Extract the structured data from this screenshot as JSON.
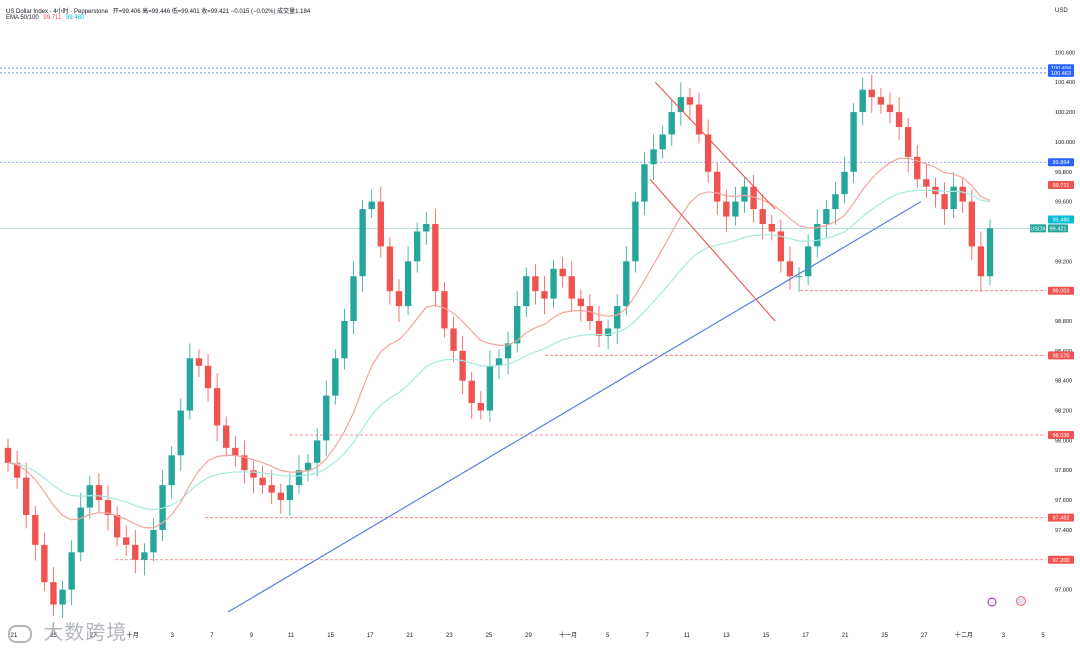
{
  "header": {
    "title": "US Dollar Index · 4小时 · Pepperstone",
    "ohlc": "开=99.406  高=99.446  低=99.401  收=99.421  −0.015 (−0.02%)  成交量1.184",
    "ema_label": "EMA 50/100",
    "ema50_value": "99.711",
    "ema100_value": "99.480"
  },
  "axis_unit": "USD",
  "watermark": "大数跨境",
  "colors": {
    "up": "#26a69a",
    "down": "#ef5350",
    "ema50": "#f4a49a",
    "ema100": "#a6eadf",
    "trendline": "#5b7fe0",
    "channel": "#ef5350",
    "level": "#ef5350",
    "resistance": "#5b7fe0",
    "current": "#26a69a"
  },
  "chart_data": {
    "type": "candlestick",
    "title": "US Dollar Index",
    "ylabel": "USD",
    "ylim": [
      96.85,
      100.75
    ],
    "x_tick_labels": [
      "21",
      "25",
      "27",
      "十月",
      "3",
      "7",
      "9",
      "11",
      "15",
      "17",
      "21",
      "23",
      "25",
      "29",
      "十一月",
      "5",
      "7",
      "11",
      "13",
      "15",
      "17",
      "21",
      "25",
      "27",
      "十二月",
      "3",
      "5"
    ],
    "y_tick_labels": [
      "100.600",
      "100.400",
      "100.200",
      "100.000",
      "99.800",
      "99.600",
      "99.200",
      "98.800",
      "98.600",
      "98.400",
      "98.200",
      "98.000",
      "97.800",
      "97.600",
      "97.400",
      "97.000"
    ],
    "key_levels": [
      {
        "value": 100.494,
        "label": "100.494",
        "color": "#2962ff",
        "style": "dotted"
      },
      {
        "value": 100.463,
        "label": "100.463",
        "color": "#2962ff",
        "style": "dotted"
      },
      {
        "value": 99.864,
        "label": "99.864",
        "color": "#2962ff",
        "style": "dotted"
      },
      {
        "value": 99.711,
        "label": "99.711",
        "color": "#ef5350",
        "style": "tag"
      },
      {
        "value": 99.48,
        "label": "99.480",
        "color": "#00bcd4",
        "style": "tag"
      },
      {
        "value": 99.421,
        "label": "99.421",
        "color": "#26a69a",
        "style": "solid",
        "prefix": "USDX"
      },
      {
        "value": 99.003,
        "label": "99.003",
        "color": "#ef5350",
        "style": "dashed"
      },
      {
        "value": 98.57,
        "label": "98.570",
        "color": "#ef5350",
        "style": "dashed"
      },
      {
        "value": 98.036,
        "label": "98.036",
        "color": "#ef5350",
        "style": "dashed"
      },
      {
        "value": 97.482,
        "label": "97.482",
        "color": "#ef5350",
        "style": "dashed"
      },
      {
        "value": 97.2,
        "label": "97.200",
        "color": "#ef5350",
        "style": "dashed"
      }
    ],
    "trendline": {
      "from": [
        0.215,
        96.85
      ],
      "to": [
        0.88,
        99.6
      ]
    },
    "channel": {
      "upper": {
        "from": [
          0.625,
          100.4
        ],
        "to": [
          0.74,
          99.55
        ]
      },
      "lower": {
        "from": [
          0.62,
          99.75
        ],
        "to": [
          0.74,
          98.8
        ]
      }
    },
    "closes": [
      97.85,
      97.75,
      97.5,
      97.3,
      97.05,
      96.9,
      97.0,
      97.25,
      97.55,
      97.7,
      97.6,
      97.5,
      97.35,
      97.3,
      97.2,
      97.25,
      97.4,
      97.7,
      97.9,
      98.2,
      98.55,
      98.5,
      98.35,
      98.1,
      97.95,
      97.9,
      97.8,
      97.75,
      97.7,
      97.65,
      97.6,
      97.7,
      97.8,
      97.85,
      98.0,
      98.3,
      98.55,
      98.8,
      99.1,
      99.55,
      99.6,
      99.3,
      99.0,
      98.9,
      99.2,
      99.4,
      99.45,
      99.0,
      98.75,
      98.6,
      98.4,
      98.25,
      98.2,
      98.5,
      98.55,
      98.65,
      98.9,
      99.1,
      99.0,
      98.95,
      99.15,
      99.1,
      98.95,
      98.9,
      98.8,
      98.7,
      98.75,
      98.9,
      99.2,
      99.6,
      99.85,
      99.95,
      100.05,
      100.2,
      100.3,
      100.25,
      100.05,
      99.8,
      99.6,
      99.5,
      99.6,
      99.7,
      99.55,
      99.45,
      99.4,
      99.2,
      99.1,
      99.1,
      99.3,
      99.45,
      99.55,
      99.65,
      99.8,
      100.2,
      100.35,
      100.3,
      100.25,
      100.2,
      100.1,
      99.9,
      99.75,
      99.7,
      99.65,
      99.55,
      99.7,
      99.6,
      99.3,
      99.1,
      99.421
    ]
  }
}
